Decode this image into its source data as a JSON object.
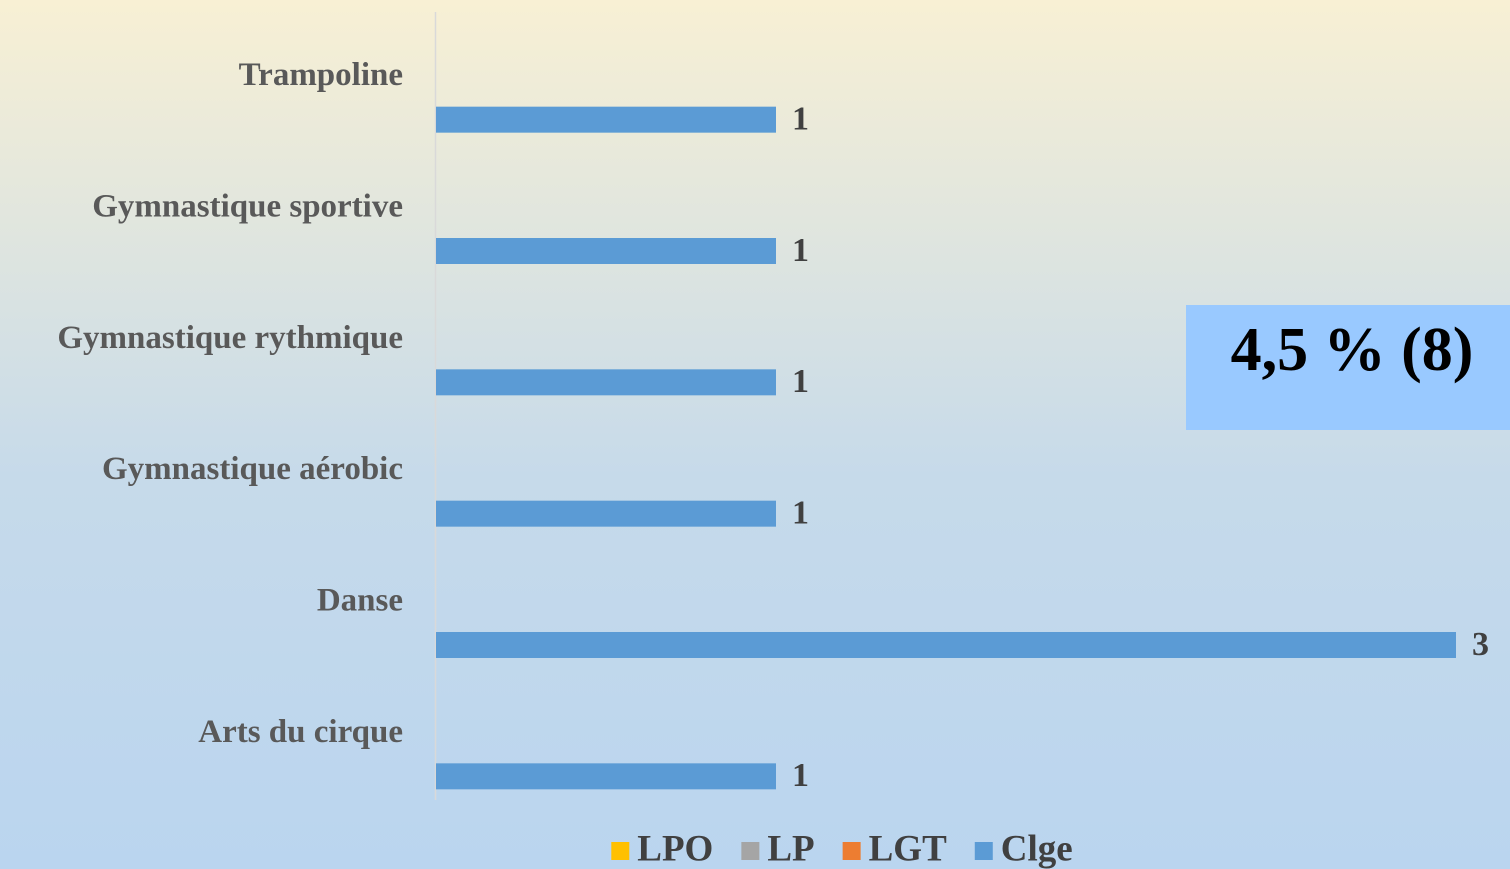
{
  "chart_data": {
    "type": "bar",
    "orientation": "horizontal",
    "categories": [
      "Trampoline",
      "Gymnastique sportive",
      "Gymnastique rythmique",
      "Gymnastique aérobic",
      "Danse",
      "Arts du cirque"
    ],
    "series": [
      {
        "name": "LPO",
        "color": "#ffc000",
        "values": [
          null,
          null,
          null,
          null,
          null,
          null
        ]
      },
      {
        "name": "LP",
        "color": "#a5a5a5",
        "values": [
          null,
          null,
          null,
          null,
          null,
          null
        ]
      },
      {
        "name": "LGT",
        "color": "#ed7d31",
        "values": [
          null,
          null,
          null,
          null,
          null,
          null
        ]
      },
      {
        "name": "Clge",
        "color": "#5b9bd5",
        "values": [
          1,
          1,
          1,
          1,
          3,
          1
        ]
      }
    ],
    "xlim": [
      0,
      3
    ],
    "annotation": "4,5 % (8)",
    "legend": "bottom"
  }
}
